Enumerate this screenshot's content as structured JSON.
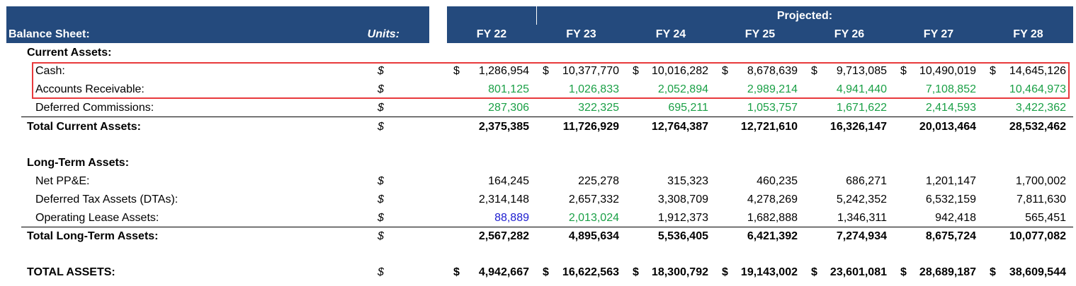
{
  "header": {
    "title": "Balance Sheet:",
    "units": "Units:",
    "group": "Projected:",
    "years": [
      "FY 22",
      "FY 23",
      "FY 24",
      "FY 25",
      "FY 26",
      "FY 27",
      "FY 28"
    ],
    "background": "#244a7d"
  },
  "highlight": {
    "rows": [
      1,
      2
    ],
    "color": "#e8393c"
  },
  "rows": [
    {
      "label": "Current Assets:",
      "style": "heading"
    },
    {
      "label": "Cash:",
      "style": "item",
      "unit": "$",
      "currency": "$",
      "values": [
        "1,286,954",
        "10,377,770",
        "10,016,282",
        "8,678,639",
        "9,713,085",
        "10,490,019",
        "14,645,126"
      ]
    },
    {
      "label": "Accounts Receivable:",
      "style": "item",
      "unit": "$",
      "color": "#1aa046",
      "values": [
        "801,125",
        "1,026,833",
        "2,052,894",
        "2,989,214",
        "4,941,440",
        "7,108,852",
        "10,464,973"
      ]
    },
    {
      "label": "Deferred Commissions:",
      "style": "item",
      "unit": "$",
      "color": "#1aa046",
      "rule_below": true,
      "values": [
        "287,306",
        "322,325",
        "695,211",
        "1,053,757",
        "1,671,622",
        "2,414,593",
        "3,422,362"
      ]
    },
    {
      "label": "Total Current Assets:",
      "style": "total",
      "unit": "$",
      "values": [
        "2,375,385",
        "11,726,929",
        "12,764,387",
        "12,721,610",
        "16,326,147",
        "20,013,464",
        "28,532,462"
      ]
    },
    {
      "label": "Long-Term Assets:",
      "style": "heading"
    },
    {
      "label": "Net PP&E:",
      "style": "item",
      "unit": "$",
      "values": [
        "164,245",
        "225,278",
        "315,323",
        "460,235",
        "686,271",
        "1,201,147",
        "1,700,002"
      ]
    },
    {
      "label": "Deferred Tax Assets (DTAs):",
      "style": "item",
      "unit": "$",
      "values": [
        "2,314,148",
        "2,657,332",
        "3,308,709",
        "4,278,269",
        "5,242,352",
        "6,532,159",
        "7,811,630"
      ]
    },
    {
      "label": "Operating Lease Assets:",
      "style": "item",
      "unit": "$",
      "rule_below": true,
      "colors": [
        "#1c1cd0",
        "#1aa046",
        "#000000",
        "#000000",
        "#000000",
        "#000000",
        "#000000"
      ],
      "values": [
        "88,889",
        "2,013,024",
        "1,912,373",
        "1,682,888",
        "1,346,311",
        "942,418",
        "565,451"
      ]
    },
    {
      "label": "Total Long-Term Assets:",
      "style": "total",
      "unit": "$",
      "values": [
        "2,567,282",
        "4,895,634",
        "5,536,405",
        "6,421,392",
        "7,274,934",
        "8,675,724",
        "10,077,082"
      ]
    },
    {
      "label": "TOTAL ASSETS:",
      "style": "total",
      "unit": "$",
      "currency": "$",
      "values": [
        "4,942,667",
        "16,622,563",
        "18,300,792",
        "19,143,002",
        "23,601,081",
        "28,689,187",
        "38,609,544"
      ]
    }
  ]
}
